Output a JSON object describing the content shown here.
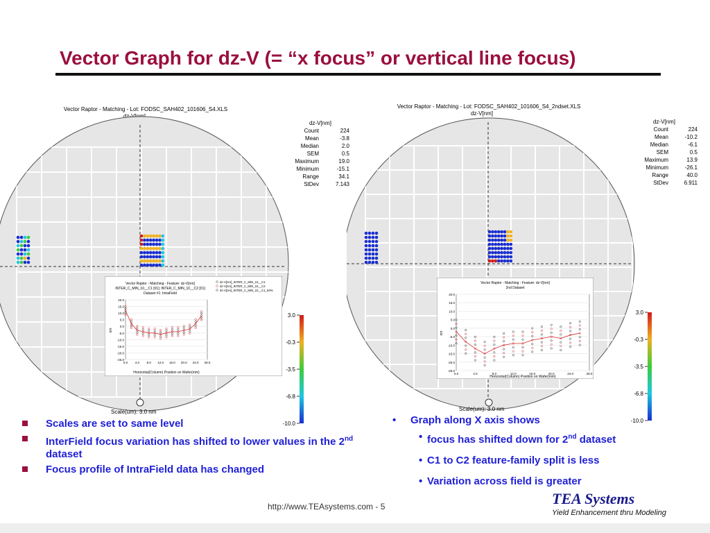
{
  "slide": {
    "title": "Vector Graph for dz-V (= “x focus” or vertical line focus)",
    "footer_url": "http://www.TEAsystems.com - 5",
    "logo_text": "TEA Systems",
    "logo_tagline": "Yield Enhancement thru Modeling"
  },
  "left_panel": {
    "header": "Vector Raptor - Matching - Lot: FODSC_SAH402_101606_S4.XLS",
    "subheader": "dz-V[nm]",
    "stats_title": "dz-V[nm]",
    "stats": [
      {
        "label": "Count",
        "value": "224"
      },
      {
        "label": "Mean",
        "value": "-3.8"
      },
      {
        "label": "Median",
        "value": "2.0"
      },
      {
        "label": "SEM",
        "value": "0.5"
      },
      {
        "label": "Maximum",
        "value": "19.0"
      },
      {
        "label": "Minimum",
        "value": "-15.1"
      },
      {
        "label": "Range",
        "value": "34.1"
      },
      {
        "label": "StDev",
        "value": "7.143"
      }
    ],
    "scale_label": "Scale(um): 3.0 nm",
    "colorbar_ticks": [
      "3.0",
      "-0.3",
      "-3.5",
      "-6.8",
      "-10.0"
    ],
    "inset": {
      "title": "Vector Raptor - Matching - Feature: dz-V[nm]",
      "subtitle1": "INTER_C_MIN_10__C1 [01]; INTER_C_MIN_10__C2 [01]",
      "subtitle2": "Dataset #1: IntraField",
      "legend": [
        "dz-V[nm]_INTER_C_MIN_10__C1",
        "dz-V[nm]_INTER_C_MIN_10__C2",
        "dz-V[nm]_INTER_C_MIN_10__C1_50%"
      ],
      "y_ticks": [
        "20.0",
        "15.0",
        "10.0",
        "5.0",
        "0.0",
        "-5.0",
        "-10.0",
        "-15.0",
        "-20.0",
        "-25.0"
      ],
      "x_ticks": [
        "0.0",
        "4.0",
        "8.0",
        "12.0",
        "16.0",
        "20.0",
        "24.0",
        "28.0"
      ],
      "xlabel": "Horizontal(Column) Position on Wafer(mm)",
      "ylabel": "nm"
    }
  },
  "right_panel": {
    "header": "Vector Raptor - Matching - Lot: FODSC_SAH402_101606_S4_2ndset.XLS",
    "subheader": "dz-V[nm]",
    "stats_title": "dz-V[nm]",
    "stats": [
      {
        "label": "Count",
        "value": "224"
      },
      {
        "label": "Mean",
        "value": "-10.2"
      },
      {
        "label": "Median",
        "value": "-6.1"
      },
      {
        "label": "SEM",
        "value": "0.5"
      },
      {
        "label": "Maximum",
        "value": "13.9"
      },
      {
        "label": "Minimum",
        "value": "-26.1"
      },
      {
        "label": "Range",
        "value": "40.0"
      },
      {
        "label": "StDev",
        "value": "6.911"
      }
    ],
    "scale_label": "Scale(um): 3.0 nm",
    "colorbar_ticks": [
      "3.0",
      "-0.3",
      "-3.5",
      "-6.8",
      "-10.0"
    ],
    "inset": {
      "title": "Vector Raptor - Matching - Feature: dz-V[nm]",
      "subtitle": "2nd Dataset",
      "y_ticks": [
        "20.0",
        "15.0",
        "10.0",
        "5.0",
        "0.0",
        "-5.0",
        "-10.0",
        "-15.0",
        "-20.0",
        "-25.0"
      ],
      "x_ticks": [
        "0.0",
        "4.0",
        "8.0",
        "12.0",
        "16.0",
        "20.0",
        "24.0",
        "28.0"
      ],
      "xlabel": "Horizontal(Column) Position on Wafer(mm)",
      "ylabel": "nm"
    }
  },
  "bullets_left": [
    {
      "text": "Scales are set to same level"
    },
    {
      "text": "InterField focus variation has shifted to lower values in the 2",
      "sup": "nd",
      "tail": " dataset"
    },
    {
      "text": "Focus profile of IntraField data has changed"
    }
  ],
  "bullets_right": {
    "main": "Graph along X axis shows",
    "subs": [
      {
        "text": "focus has shifted down for 2",
        "sup": "nd",
        "tail": " dataset"
      },
      {
        "text": "C1 to C2 feature-family split is less"
      },
      {
        "text": "Variation across field is greater"
      }
    ]
  },
  "colors": {
    "title": "#9a0f3e",
    "bullet_text": "#1f1fd6",
    "bullet_marker": "#9a0f3e",
    "wafer_fill": "#e6e6e6",
    "colorbar_top": "#d11a1a",
    "colorbar_bottom": "#1a2ed1"
  }
}
